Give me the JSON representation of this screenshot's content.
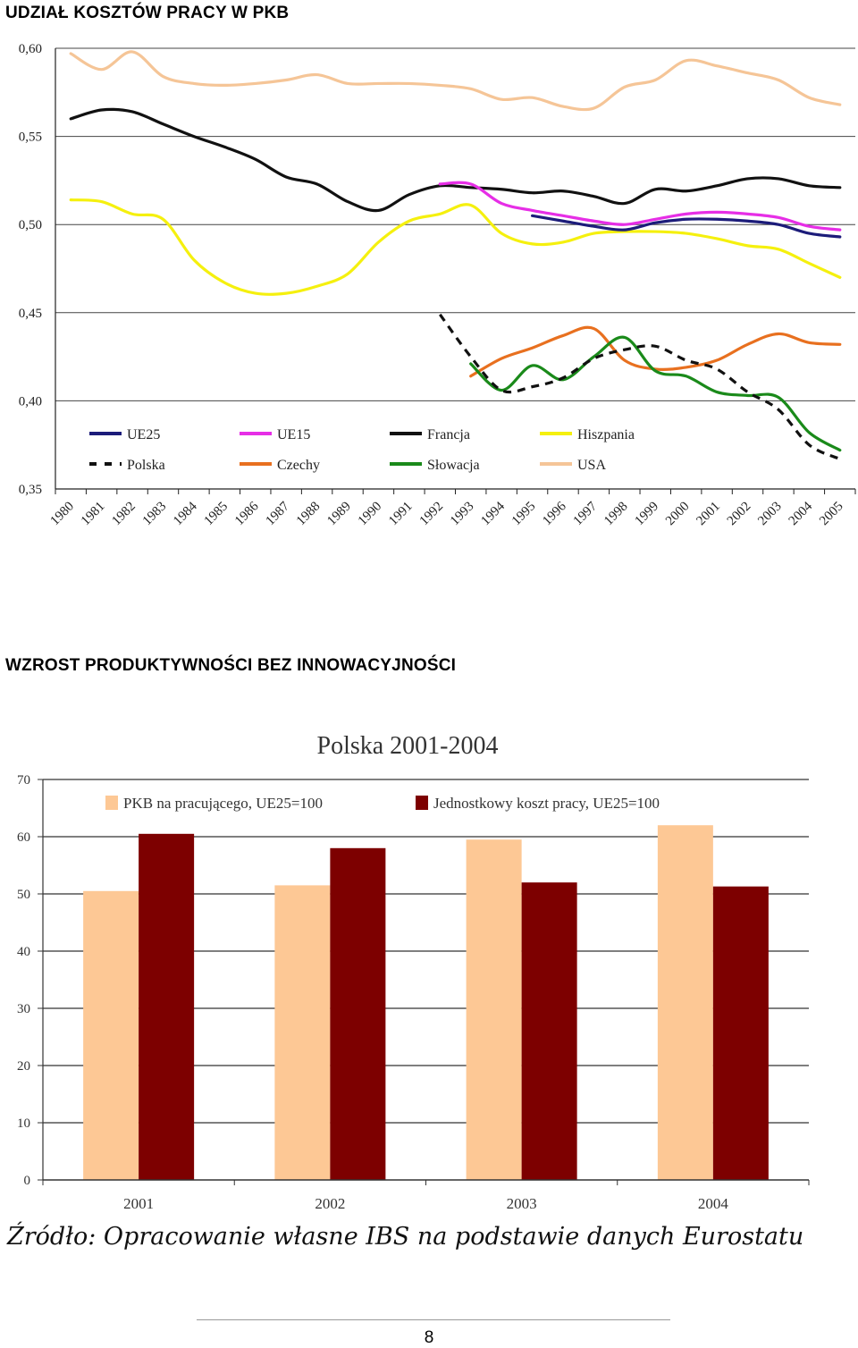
{
  "section1": {
    "heading": "UDZIAŁ KOSZTÓW PRACY W PKB"
  },
  "section2": {
    "heading": "WZROST PRODUKTYWNOŚCI BEZ  INNOWACYJNOŚCI"
  },
  "source_note": "Źródło: Opracowanie własne IBS na podstawie danych Eurostatu",
  "page_number": "8",
  "chart_data": [
    {
      "type": "line",
      "title": "",
      "x": [
        "1980",
        "1981",
        "1982",
        "1983",
        "1984",
        "1985",
        "1986",
        "1987",
        "1988",
        "1989",
        "1990",
        "1991",
        "1992",
        "1993",
        "1994",
        "1995",
        "1996",
        "1997",
        "1998",
        "1999",
        "2000",
        "2001",
        "2002",
        "2003",
        "2004",
        "2005"
      ],
      "ylim": [
        0.35,
        0.6
      ],
      "yticks": [
        "0,35",
        "0,40",
        "0,45",
        "0,50",
        "0,55",
        "0,60"
      ],
      "grid": true,
      "legend_position": "bottom-inside",
      "series": [
        {
          "name": "UE25",
          "color": "#1c1c7a",
          "dash": false,
          "values": [
            null,
            null,
            null,
            null,
            null,
            null,
            null,
            null,
            null,
            null,
            null,
            null,
            null,
            null,
            null,
            0.505,
            0.502,
            0.499,
            0.497,
            0.501,
            0.503,
            0.503,
            0.502,
            0.5,
            0.495,
            0.493
          ]
        },
        {
          "name": "UE15",
          "color": "#e62ee6",
          "dash": false,
          "values": [
            null,
            null,
            null,
            null,
            null,
            null,
            null,
            null,
            null,
            null,
            null,
            null,
            0.523,
            0.523,
            0.512,
            0.508,
            0.505,
            0.502,
            0.5,
            0.503,
            0.506,
            0.507,
            0.506,
            0.504,
            0.499,
            0.497
          ]
        },
        {
          "name": "Francja",
          "color": "#111111",
          "dash": false,
          "values": [
            0.56,
            0.565,
            0.564,
            0.557,
            0.55,
            0.544,
            0.537,
            0.527,
            0.523,
            0.513,
            0.508,
            0.517,
            0.522,
            0.521,
            0.52,
            0.518,
            0.519,
            0.516,
            0.512,
            0.52,
            0.519,
            0.522,
            0.526,
            0.526,
            0.522,
            0.521
          ]
        },
        {
          "name": "Hiszpania",
          "color": "#f5f00e",
          "dash": false,
          "values": [
            0.514,
            0.513,
            0.506,
            0.503,
            0.48,
            0.467,
            0.461,
            0.461,
            0.465,
            0.472,
            0.49,
            0.502,
            0.506,
            0.511,
            0.495,
            0.489,
            0.49,
            0.495,
            0.496,
            0.496,
            0.495,
            0.492,
            0.488,
            0.486,
            0.478,
            0.47
          ]
        },
        {
          "name": "Polska",
          "color": "#111111",
          "dash": true,
          "values": [
            null,
            null,
            null,
            null,
            null,
            null,
            null,
            null,
            null,
            null,
            null,
            null,
            0.449,
            0.425,
            0.406,
            0.408,
            0.413,
            0.424,
            0.429,
            0.431,
            0.423,
            0.418,
            0.405,
            0.395,
            0.375,
            0.367
          ]
        },
        {
          "name": "Czechy",
          "color": "#e8701f",
          "dash": false,
          "values": [
            null,
            null,
            null,
            null,
            null,
            null,
            null,
            null,
            null,
            null,
            null,
            null,
            null,
            0.414,
            0.424,
            0.43,
            0.437,
            0.441,
            0.423,
            0.418,
            0.419,
            0.423,
            0.432,
            0.438,
            0.433,
            0.432
          ]
        },
        {
          "name": "Słowacja",
          "color": "#1a8a1a",
          "dash": false,
          "values": [
            null,
            null,
            null,
            null,
            null,
            null,
            null,
            null,
            null,
            null,
            null,
            null,
            null,
            0.421,
            0.406,
            0.42,
            0.412,
            0.425,
            0.436,
            0.417,
            0.414,
            0.405,
            0.403,
            0.402,
            0.382,
            0.372
          ]
        },
        {
          "name": "USA",
          "color": "#f5c597",
          "dash": false,
          "values": [
            0.597,
            0.588,
            0.598,
            0.584,
            0.58,
            0.579,
            0.58,
            0.582,
            0.585,
            0.58,
            0.58,
            0.58,
            0.579,
            0.577,
            0.571,
            0.572,
            0.567,
            0.566,
            0.578,
            0.582,
            0.593,
            0.59,
            0.586,
            0.582,
            0.572,
            0.568
          ]
        }
      ]
    },
    {
      "type": "bar",
      "title": "Polska 2001-2004",
      "categories": [
        "2001",
        "2002",
        "2003",
        "2004"
      ],
      "ylim": [
        0,
        70
      ],
      "yticks": [
        "0",
        "10",
        "20",
        "30",
        "40",
        "50",
        "60",
        "70"
      ],
      "grid": true,
      "legend_position": "top-inside",
      "series": [
        {
          "name": "PKB na pracującego, UE25=100",
          "color": "#fdc895",
          "values": [
            50.5,
            51.5,
            59.5,
            62.0
          ]
        },
        {
          "name": "Jednostkowy koszt pracy, UE25=100",
          "color": "#7d0000",
          "values": [
            60.5,
            58.0,
            52.0,
            51.3
          ]
        }
      ]
    }
  ]
}
